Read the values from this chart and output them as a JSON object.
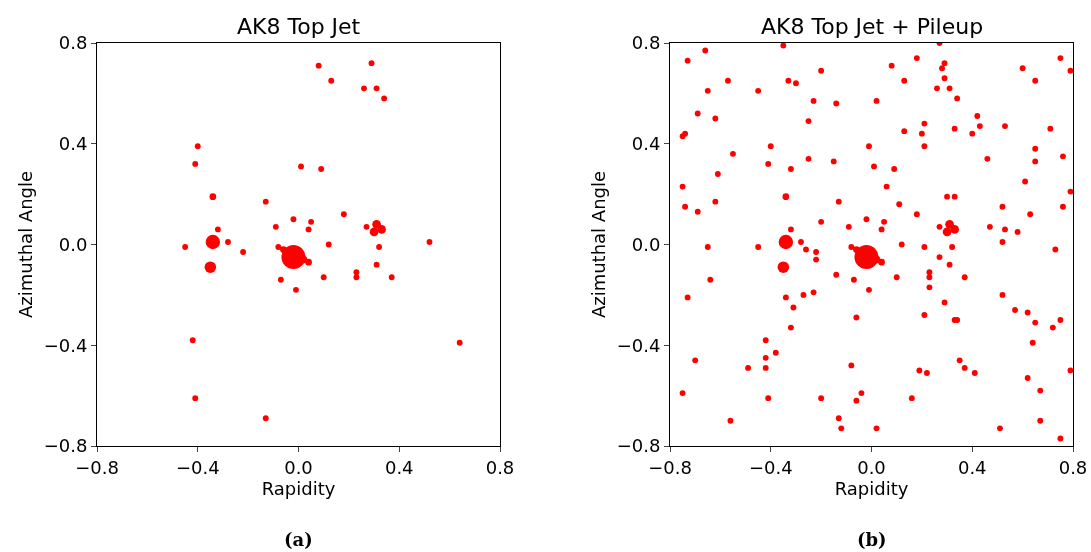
{
  "chart_data": [
    {
      "type": "bubble",
      "title": "AK8 Top Jet",
      "xlabel": "Rapidity",
      "ylabel": "Azimuthal Angle",
      "annotations": [
        "(a)"
      ],
      "color": "#ff0000",
      "xlim": [
        -0.8,
        0.8
      ],
      "ylim": [
        -0.8,
        0.8
      ],
      "xticks": [
        {
          "value": -0.8,
          "label": "−0.8"
        },
        {
          "value": -0.4,
          "label": "−0.4"
        },
        {
          "value": 0,
          "label": "0.0"
        },
        {
          "value": 0.4,
          "label": "0.4"
        },
        {
          "value": 0.8,
          "label": "0.8"
        }
      ],
      "yticks": [
        {
          "value": -0.8,
          "label": "−0.8"
        },
        {
          "value": -0.4,
          "label": "−0.4"
        },
        {
          "value": 0,
          "label": "0.0"
        },
        {
          "value": 0.4,
          "label": "0.4"
        },
        {
          "value": 0.8,
          "label": "0.8"
        }
      ],
      "x": [
        0.08,
        0.29,
        0.13,
        0.26,
        0.31,
        0.34,
        -0.4,
        -0.41,
        0.01,
        0.09,
        -0.34,
        -0.13,
        0.18,
        -0.02,
        0.05,
        -0.09,
        0.04,
        0.27,
        0.31,
        0.33,
        0.3,
        -0.32,
        0.52,
        -0.34,
        -0.28,
        -0.45,
        -0.08,
        -0.06,
        -0.02,
        0.02,
        0.04,
        -0.22,
        0.12,
        0.32,
        0.31,
        -0.35,
        0.23,
        0.23,
        0.37,
        -0.07,
        0.1,
        -0.01,
        -0.42,
        0.64,
        -0.41,
        -0.13
      ],
      "values": [
        0.71,
        0.72,
        0.65,
        0.62,
        0.62,
        0.58,
        0.39,
        0.32,
        0.31,
        0.3,
        0.19,
        0.17,
        0.12,
        0.1,
        0.09,
        0.07,
        0.06,
        0.07,
        0.08,
        0.06,
        0.05,
        0.06,
        0.01,
        0.01,
        0.01,
        -0.01,
        -0.01,
        -0.02,
        -0.05,
        -0.06,
        -0.07,
        -0.03,
        0.0,
        -0.01,
        -0.08,
        -0.09,
        -0.11,
        -0.13,
        -0.13,
        -0.14,
        -0.13,
        -0.18,
        -0.38,
        -0.39,
        -0.61,
        -0.69
      ],
      "sizes": [
        0.06,
        0.06,
        0.06,
        0.06,
        0.06,
        0.06,
        0.06,
        0.06,
        0.06,
        0.06,
        0.078,
        0.06,
        0.06,
        0.06,
        0.06,
        0.06,
        0.06,
        0.06,
        0.13,
        0.13,
        0.13,
        0.058,
        0.06,
        0.36,
        0.06,
        0.06,
        0.06,
        0.078,
        1,
        0.1,
        0.078,
        0.06,
        0.06,
        0.06,
        0.06,
        0.23,
        0.06,
        0.06,
        0.06,
        0.06,
        0.06,
        0.06,
        0.06,
        0.06,
        0.06,
        0.06
      ]
    },
    {
      "type": "bubble",
      "title": "AK8 Top Jet + Pileup",
      "xlabel": "Rapidity",
      "ylabel": "Azimuthal Angle",
      "annotations": [
        "(b)"
      ],
      "color": "#ff0000",
      "xlim": [
        -0.8,
        0.8
      ],
      "ylim": [
        -0.8,
        0.8
      ],
      "xticks": [
        {
          "value": -0.8,
          "label": "−0.8"
        },
        {
          "value": -0.4,
          "label": "−0.4"
        },
        {
          "value": 0,
          "label": "0.0"
        },
        {
          "value": 0.4,
          "label": "0.4"
        },
        {
          "value": 0.8,
          "label": "0.8"
        }
      ],
      "yticks": [
        {
          "value": -0.8,
          "label": "−0.8"
        },
        {
          "value": -0.4,
          "label": "−0.4"
        },
        {
          "value": 0,
          "label": "0.0"
        },
        {
          "value": 0.4,
          "label": "0.4"
        },
        {
          "value": 0.8,
          "label": "0.8"
        }
      ],
      "x": [
        0.08,
        0.29,
        0.13,
        0.26,
        0.31,
        0.34,
        -0.4,
        -0.41,
        0.01,
        0.09,
        -0.34,
        -0.13,
        0.18,
        -0.02,
        0.05,
        -0.09,
        0.04,
        0.27,
        0.31,
        0.33,
        0.3,
        -0.32,
        0.52,
        -0.34,
        -0.28,
        -0.45,
        -0.08,
        -0.06,
        -0.02,
        0.02,
        0.04,
        -0.22,
        0.12,
        0.32,
        0.31,
        -0.35,
        0.23,
        0.23,
        0.37,
        -0.07,
        0.1,
        -0.01,
        -0.42,
        0.64,
        -0.41,
        -0.13,
        -0.66,
        -0.35,
        0.27,
        -0.73,
        0.18,
        0.75,
        0.28,
        0.6,
        -0.2,
        -0.57,
        -0.33,
        -0.3,
        0.29,
        0.65,
        -0.65,
        -0.45,
        -0.23,
        -0.14,
        0.02,
        -0.69,
        -0.62,
        0.42,
        0.21,
        -0.25,
        0.43,
        0.53,
        0.13,
        0.2,
        0.33,
        0.4,
        0.71,
        -0.75,
        -0.74,
        -0.01,
        0.21,
        -0.55,
        0.65,
        0.76,
        -0.25,
        -0.15,
        0.46,
        0.65,
        -0.32,
        -0.61,
        0.61,
        -0.75,
        0.06,
        0.79,
        0.3,
        0.33,
        -0.62,
        0.11,
        -0.74,
        0.52,
        0.76,
        -0.69,
        0.63,
        -0.2,
        0.47,
        0.53,
        0.58,
        0.79,
        -0.65,
        -0.26,
        -0.22,
        0.21,
        0.73,
        0.27,
        -0.64,
        -0.14,
        0.23,
        -0.73,
        -0.34,
        -0.27,
        -0.23,
        0.52,
        0.29,
        -0.31,
        0.57,
        0.62,
        -0.06,
        0.21,
        0.33,
        0.34,
        0.65,
        0.75,
        0.72,
        -0.32,
        -0.38,
        -0.42,
        -0.7,
        -0.08,
        0.35,
        -0.49,
        -0.42,
        0.37,
        0.19,
        0.22,
        0.41,
        0.79,
        0.62,
        -0.75,
        -0.04,
        0.67,
        -0.2,
        -0.06,
        0.16,
        -0.56,
        -0.12,
        0.02,
        0.51,
        0.67,
        0.75
      ],
      "values": [
        0.71,
        0.72,
        0.65,
        0.62,
        0.62,
        0.58,
        0.39,
        0.32,
        0.31,
        0.3,
        0.19,
        0.17,
        0.12,
        0.1,
        0.09,
        0.07,
        0.06,
        0.07,
        0.08,
        0.06,
        0.05,
        0.06,
        0.01,
        0.01,
        0.01,
        -0.01,
        -0.01,
        -0.02,
        -0.05,
        -0.06,
        -0.07,
        -0.03,
        0.0,
        -0.01,
        -0.08,
        -0.09,
        -0.11,
        -0.13,
        -0.13,
        -0.14,
        -0.13,
        -0.18,
        -0.38,
        -0.39,
        -0.61,
        -0.69,
        0.77,
        0.79,
        0.8,
        0.73,
        0.74,
        0.74,
        0.7,
        0.7,
        0.69,
        0.65,
        0.65,
        0.64,
        0.66,
        0.65,
        0.61,
        0.61,
        0.57,
        0.56,
        0.57,
        0.52,
        0.5,
        0.51,
        0.48,
        0.49,
        0.47,
        0.47,
        0.45,
        0.44,
        0.46,
        0.44,
        0.46,
        0.43,
        0.44,
        0.39,
        0.39,
        0.36,
        0.38,
        0.35,
        0.34,
        0.33,
        0.34,
        0.33,
        0.3,
        0.28,
        0.25,
        0.23,
        0.23,
        0.21,
        0.19,
        0.19,
        0.17,
        0.16,
        0.15,
        0.15,
        0.15,
        0.13,
        0.12,
        0.09,
        0.07,
        0.06,
        0.05,
        0.69,
        -0.01,
        -0.02,
        -0.06,
        -0.01,
        -0.02,
        -0.05,
        -0.14,
        -0.12,
        -0.17,
        -0.21,
        -0.21,
        -0.2,
        -0.19,
        -0.2,
        -0.23,
        -0.25,
        -0.26,
        -0.27,
        -0.29,
        -0.28,
        -0.3,
        -0.3,
        -0.31,
        -0.3,
        -0.33,
        -0.33,
        -0.43,
        -0.45,
        -0.46,
        -0.48,
        -0.46,
        -0.49,
        -0.49,
        -0.49,
        -0.5,
        -0.51,
        -0.51,
        -0.5,
        -0.53,
        -0.59,
        -0.59,
        -0.58,
        -0.61,
        -0.62,
        -0.61,
        -0.7,
        -0.73,
        -0.73,
        -0.73,
        -0.7,
        -0.77
      ],
      "sizes": [
        0.06,
        0.06,
        0.06,
        0.06,
        0.06,
        0.06,
        0.06,
        0.06,
        0.06,
        0.06,
        0.078,
        0.06,
        0.06,
        0.06,
        0.06,
        0.06,
        0.06,
        0.06,
        0.13,
        0.13,
        0.13,
        0.058,
        0.06,
        0.36,
        0.06,
        0.06,
        0.06,
        0.078,
        1,
        0.1,
        0.078,
        0.06,
        0.06,
        0.06,
        0.06,
        0.23,
        0.06,
        0.06,
        0.06,
        0.06,
        0.06,
        0.06,
        0.06,
        0.06,
        0.06,
        0.06,
        0.06,
        0.06,
        0.06,
        0.06,
        0.06,
        0.06,
        0.06,
        0.06,
        0.06,
        0.06,
        0.06,
        0.06,
        0.06,
        0.06,
        0.06,
        0.06,
        0.06,
        0.06,
        0.06,
        0.06,
        0.06,
        0.06,
        0.06,
        0.06,
        0.06,
        0.06,
        0.06,
        0.06,
        0.06,
        0.06,
        0.06,
        0.06,
        0.06,
        0.06,
        0.06,
        0.06,
        0.06,
        0.06,
        0.06,
        0.06,
        0.06,
        0.06,
        0.06,
        0.06,
        0.06,
        0.06,
        0.06,
        0.06,
        0.06,
        0.06,
        0.06,
        0.06,
        0.06,
        0.06,
        0.06,
        0.06,
        0.06,
        0.06,
        0.06,
        0.06,
        0.06,
        0.06,
        0.06,
        0.06,
        0.06,
        0.06,
        0.06,
        0.06,
        0.06,
        0.06,
        0.06,
        0.06,
        0.06,
        0.06,
        0.06,
        0.06,
        0.06,
        0.06,
        0.06,
        0.06,
        0.06,
        0.06,
        0.06,
        0.06,
        0.06,
        0.06,
        0.06,
        0.06,
        0.06,
        0.06,
        0.06,
        0.06,
        0.06,
        0.06,
        0.06,
        0.06,
        0.06,
        0.06,
        0.06,
        0.06,
        0.06,
        0.06,
        0.06,
        0.06,
        0.06,
        0.06,
        0.06,
        0.06,
        0.06,
        0.06,
        0.06,
        0.06,
        0.06
      ]
    }
  ]
}
